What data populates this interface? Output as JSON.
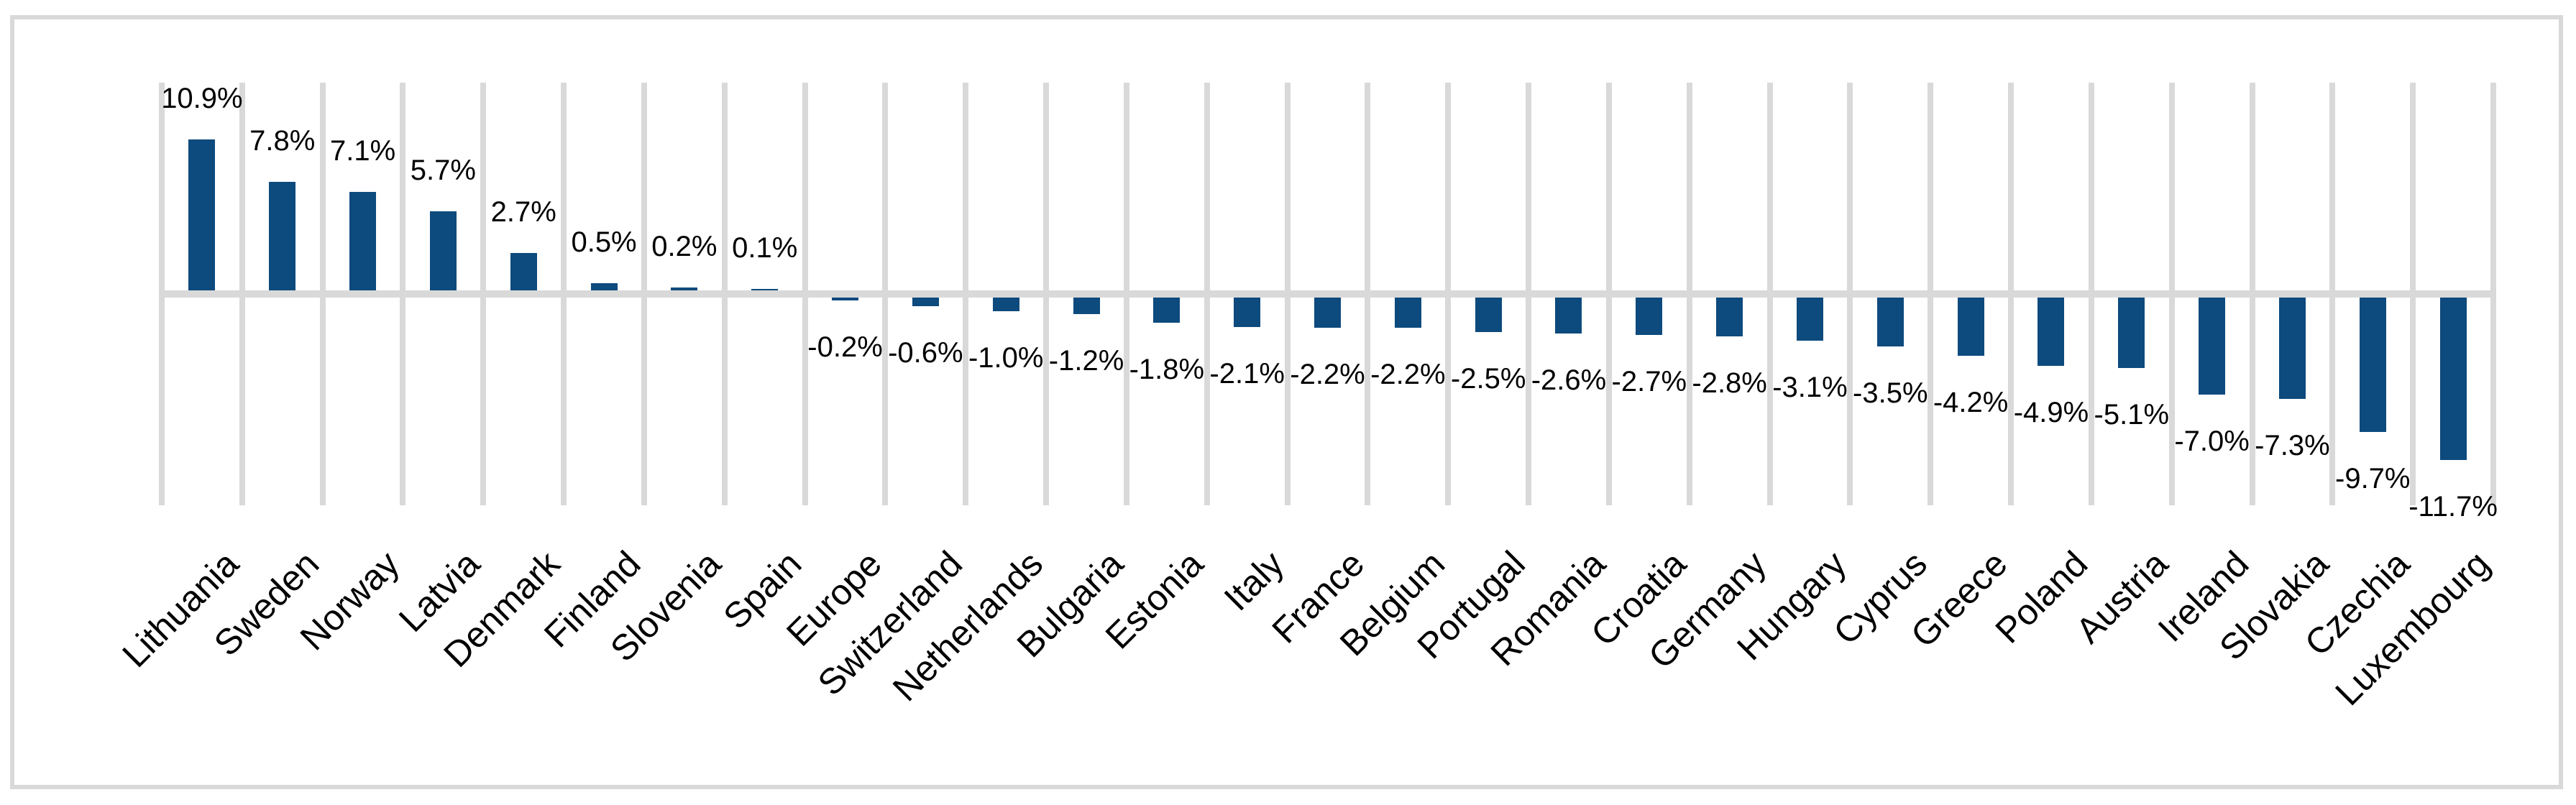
{
  "chart_data": {
    "type": "bar",
    "title": "",
    "xlabel": "",
    "ylabel": "",
    "categories": [
      "Lithuania",
      "Sweden",
      "Norway",
      "Latvia",
      "Denmark",
      "Finland",
      "Slovenia",
      "Spain",
      "Europe",
      "Switzerland",
      "Netherlands",
      "Bulgaria",
      "Estonia",
      "Italy",
      "France",
      "Belgium",
      "Portugal",
      "Romania",
      "Croatia",
      "Germany",
      "Hungary",
      "Cyprus",
      "Greece",
      "Poland",
      "Austria",
      "Ireland",
      "Slovakia",
      "Czechia",
      "Luxembourg"
    ],
    "values": [
      10.9,
      7.8,
      7.1,
      5.7,
      2.7,
      0.5,
      0.2,
      0.1,
      -0.2,
      -0.6,
      -1.0,
      -1.2,
      -1.8,
      -2.1,
      -2.2,
      -2.2,
      -2.5,
      -2.6,
      -2.7,
      -2.8,
      -3.1,
      -3.5,
      -4.2,
      -4.9,
      -5.1,
      -7.0,
      -7.3,
      -9.7,
      -11.7
    ],
    "data_labels": [
      "10.9%",
      "7.8%",
      "7.1%",
      "5.7%",
      "2.7%",
      "0.5%",
      "0.2%",
      "0.1%",
      "-0.2%",
      "-0.6%",
      "-1.0%",
      "-1.2%",
      "-1.8%",
      "-2.1%",
      "-2.2%",
      "-2.2%",
      "-2.5%",
      "-2.6%",
      "-2.7%",
      "-2.8%",
      "-3.1%",
      "-3.5%",
      "-4.2%",
      "-4.9%",
      "-5.1%",
      "-7.0%",
      "-7.3%",
      "-9.7%",
      "-11.7%"
    ],
    "unit": "%",
    "ylim": [
      -15,
      15
    ],
    "legend": "none",
    "grid": "vertical-category-gridlines",
    "colors": {
      "bar": "#0d4a7d",
      "gridline": "#d9d9d9",
      "zero_line": "#d9d9d9",
      "frame_border": "#d9d9d9",
      "label_text": "#000000"
    },
    "data_label_position": "outside-end",
    "category_label_rotation_deg": 45
  }
}
